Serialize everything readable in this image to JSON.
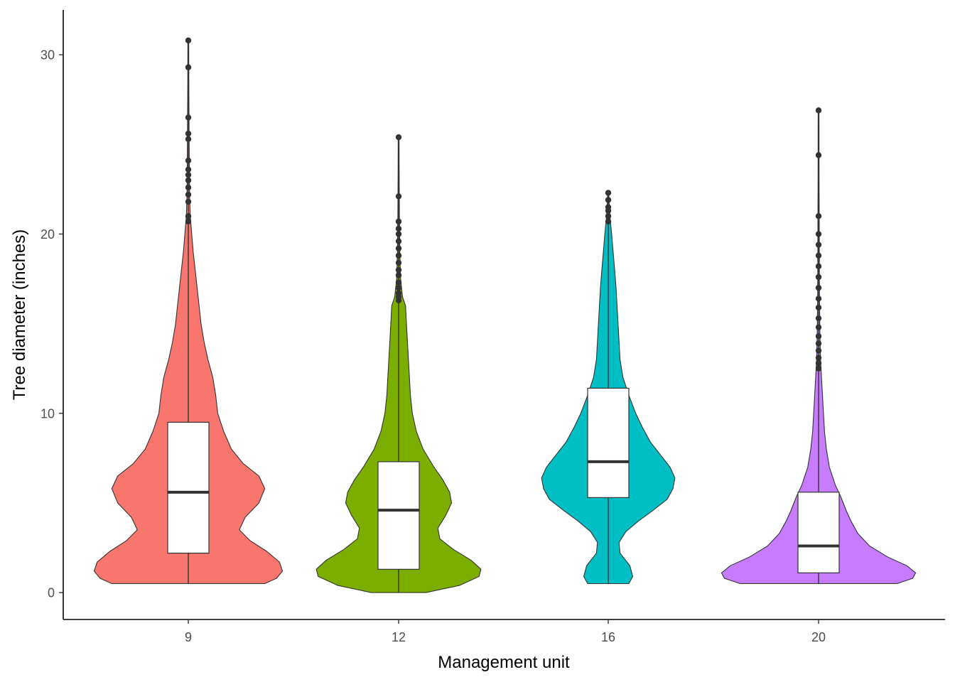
{
  "chart_data": {
    "type": "violin",
    "xlabel": "Management unit",
    "ylabel": "Tree diameter (inches)",
    "ylim": [
      -1.5,
      32.5
    ],
    "yticks": [
      0,
      10,
      20,
      30
    ],
    "categories": [
      "9",
      "12",
      "16",
      "20"
    ],
    "grid": false,
    "legend": "none",
    "groups": [
      {
        "label": "9",
        "color": "#F8766D",
        "min": 0.5,
        "max": 30.8,
        "box": {
          "q1": 2.2,
          "median": 5.6,
          "q3": 9.5,
          "whisker_low": 0.5,
          "whisker_high": 20.5
        },
        "outliers": [
          20.7,
          21.0,
          21.8,
          22.2,
          22.6,
          23.0,
          23.3,
          23.6,
          24.1,
          25.3,
          25.6,
          26.5,
          29.3,
          30.8
        ],
        "density": [
          [
            0.5,
            0.78
          ],
          [
            0.8,
            0.9
          ],
          [
            1.2,
            0.96
          ],
          [
            1.7,
            0.93
          ],
          [
            2.3,
            0.8
          ],
          [
            2.9,
            0.63
          ],
          [
            3.5,
            0.52
          ],
          [
            4.2,
            0.58
          ],
          [
            5.0,
            0.72
          ],
          [
            5.8,
            0.78
          ],
          [
            6.5,
            0.72
          ],
          [
            7.2,
            0.56
          ],
          [
            8.0,
            0.44
          ],
          [
            9.0,
            0.36
          ],
          [
            10.0,
            0.3
          ],
          [
            11.0,
            0.28
          ],
          [
            12.0,
            0.25
          ],
          [
            13.0,
            0.2
          ],
          [
            14.0,
            0.16
          ],
          [
            15.0,
            0.13
          ],
          [
            16.0,
            0.11
          ],
          [
            17.0,
            0.09
          ],
          [
            18.0,
            0.07
          ],
          [
            19.0,
            0.05
          ],
          [
            20.0,
            0.035
          ],
          [
            21.0,
            0.02
          ],
          [
            22.0,
            0.014
          ],
          [
            24.0,
            0.01
          ],
          [
            26.0,
            0.008
          ],
          [
            28.0,
            0.006
          ],
          [
            30.8,
            0.004
          ]
        ]
      },
      {
        "label": "12",
        "color": "#7CAE00",
        "min": 0.0,
        "max": 25.4,
        "box": {
          "q1": 1.3,
          "median": 4.6,
          "q3": 7.3,
          "whisker_low": 0.0,
          "whisker_high": 16.2
        },
        "outliers": [
          16.3,
          16.5,
          16.7,
          17.0,
          17.3,
          17.7,
          18.0,
          18.4,
          18.8,
          19.2,
          19.6,
          20.0,
          20.3,
          20.7,
          22.1,
          25.4
        ],
        "density": [
          [
            0.0,
            0.28
          ],
          [
            0.4,
            0.62
          ],
          [
            0.9,
            0.82
          ],
          [
            1.3,
            0.84
          ],
          [
            1.8,
            0.74
          ],
          [
            2.4,
            0.56
          ],
          [
            3.0,
            0.42
          ],
          [
            3.6,
            0.4
          ],
          [
            4.3,
            0.48
          ],
          [
            5.0,
            0.54
          ],
          [
            5.6,
            0.52
          ],
          [
            6.3,
            0.45
          ],
          [
            7.0,
            0.36
          ],
          [
            8.0,
            0.25
          ],
          [
            9.0,
            0.18
          ],
          [
            10.0,
            0.14
          ],
          [
            11.0,
            0.12
          ],
          [
            12.0,
            0.11
          ],
          [
            13.0,
            0.1
          ],
          [
            14.0,
            0.09
          ],
          [
            15.0,
            0.08
          ],
          [
            16.0,
            0.07
          ],
          [
            16.5,
            0.04
          ],
          [
            17.5,
            0.02
          ],
          [
            19.0,
            0.012
          ],
          [
            21.0,
            0.008
          ],
          [
            23.0,
            0.006
          ],
          [
            25.4,
            0.004
          ]
        ]
      },
      {
        "label": "16",
        "color": "#00BFC4",
        "min": 0.5,
        "max": 22.3,
        "box": {
          "q1": 5.3,
          "median": 7.3,
          "q3": 11.4,
          "whisker_low": 0.5,
          "whisker_high": 20.5
        },
        "outliers": [
          20.7,
          21.0,
          21.3,
          21.5,
          21.9,
          22.3
        ],
        "density": [
          [
            0.5,
            0.21
          ],
          [
            0.9,
            0.25
          ],
          [
            1.5,
            0.22
          ],
          [
            2.2,
            0.12
          ],
          [
            2.8,
            0.11
          ],
          [
            3.4,
            0.18
          ],
          [
            4.0,
            0.31
          ],
          [
            4.6,
            0.46
          ],
          [
            5.2,
            0.6
          ],
          [
            5.8,
            0.66
          ],
          [
            6.4,
            0.68
          ],
          [
            7.0,
            0.63
          ],
          [
            7.7,
            0.53
          ],
          [
            8.4,
            0.43
          ],
          [
            9.2,
            0.35
          ],
          [
            10.0,
            0.28
          ],
          [
            11.0,
            0.21
          ],
          [
            12.0,
            0.15
          ],
          [
            13.0,
            0.12
          ],
          [
            14.0,
            0.11
          ],
          [
            15.0,
            0.1
          ],
          [
            16.0,
            0.09
          ],
          [
            17.0,
            0.08
          ],
          [
            18.0,
            0.065
          ],
          [
            19.0,
            0.05
          ],
          [
            20.0,
            0.035
          ],
          [
            20.8,
            0.02
          ],
          [
            21.5,
            0.01
          ],
          [
            22.3,
            0.005
          ]
        ]
      },
      {
        "label": "20",
        "color": "#C77CFF",
        "min": 0.5,
        "max": 26.9,
        "box": {
          "q1": 1.1,
          "median": 2.6,
          "q3": 5.6,
          "whisker_low": 0.5,
          "whisker_high": 12.4
        },
        "outliers": [
          12.5,
          12.8,
          13.1,
          13.5,
          13.9,
          14.3,
          14.8,
          15.3,
          15.9,
          16.4,
          17.0,
          17.6,
          18.2,
          18.8,
          19.4,
          20.0,
          21.0,
          24.4,
          26.9
        ],
        "density": [
          [
            0.5,
            0.8
          ],
          [
            0.8,
            0.96
          ],
          [
            1.1,
            0.99
          ],
          [
            1.5,
            0.9
          ],
          [
            2.0,
            0.7
          ],
          [
            2.6,
            0.52
          ],
          [
            3.3,
            0.4
          ],
          [
            4.0,
            0.33
          ],
          [
            4.6,
            0.28
          ],
          [
            5.3,
            0.23
          ],
          [
            6.0,
            0.17
          ],
          [
            7.0,
            0.11
          ],
          [
            8.0,
            0.08
          ],
          [
            9.0,
            0.06
          ],
          [
            10.0,
            0.05
          ],
          [
            11.0,
            0.04
          ],
          [
            12.0,
            0.03
          ],
          [
            13.0,
            0.02
          ],
          [
            14.0,
            0.015
          ],
          [
            16.0,
            0.01
          ],
          [
            18.0,
            0.008
          ],
          [
            20.0,
            0.007
          ],
          [
            23.0,
            0.005
          ],
          [
            26.9,
            0.004
          ]
        ]
      }
    ]
  }
}
